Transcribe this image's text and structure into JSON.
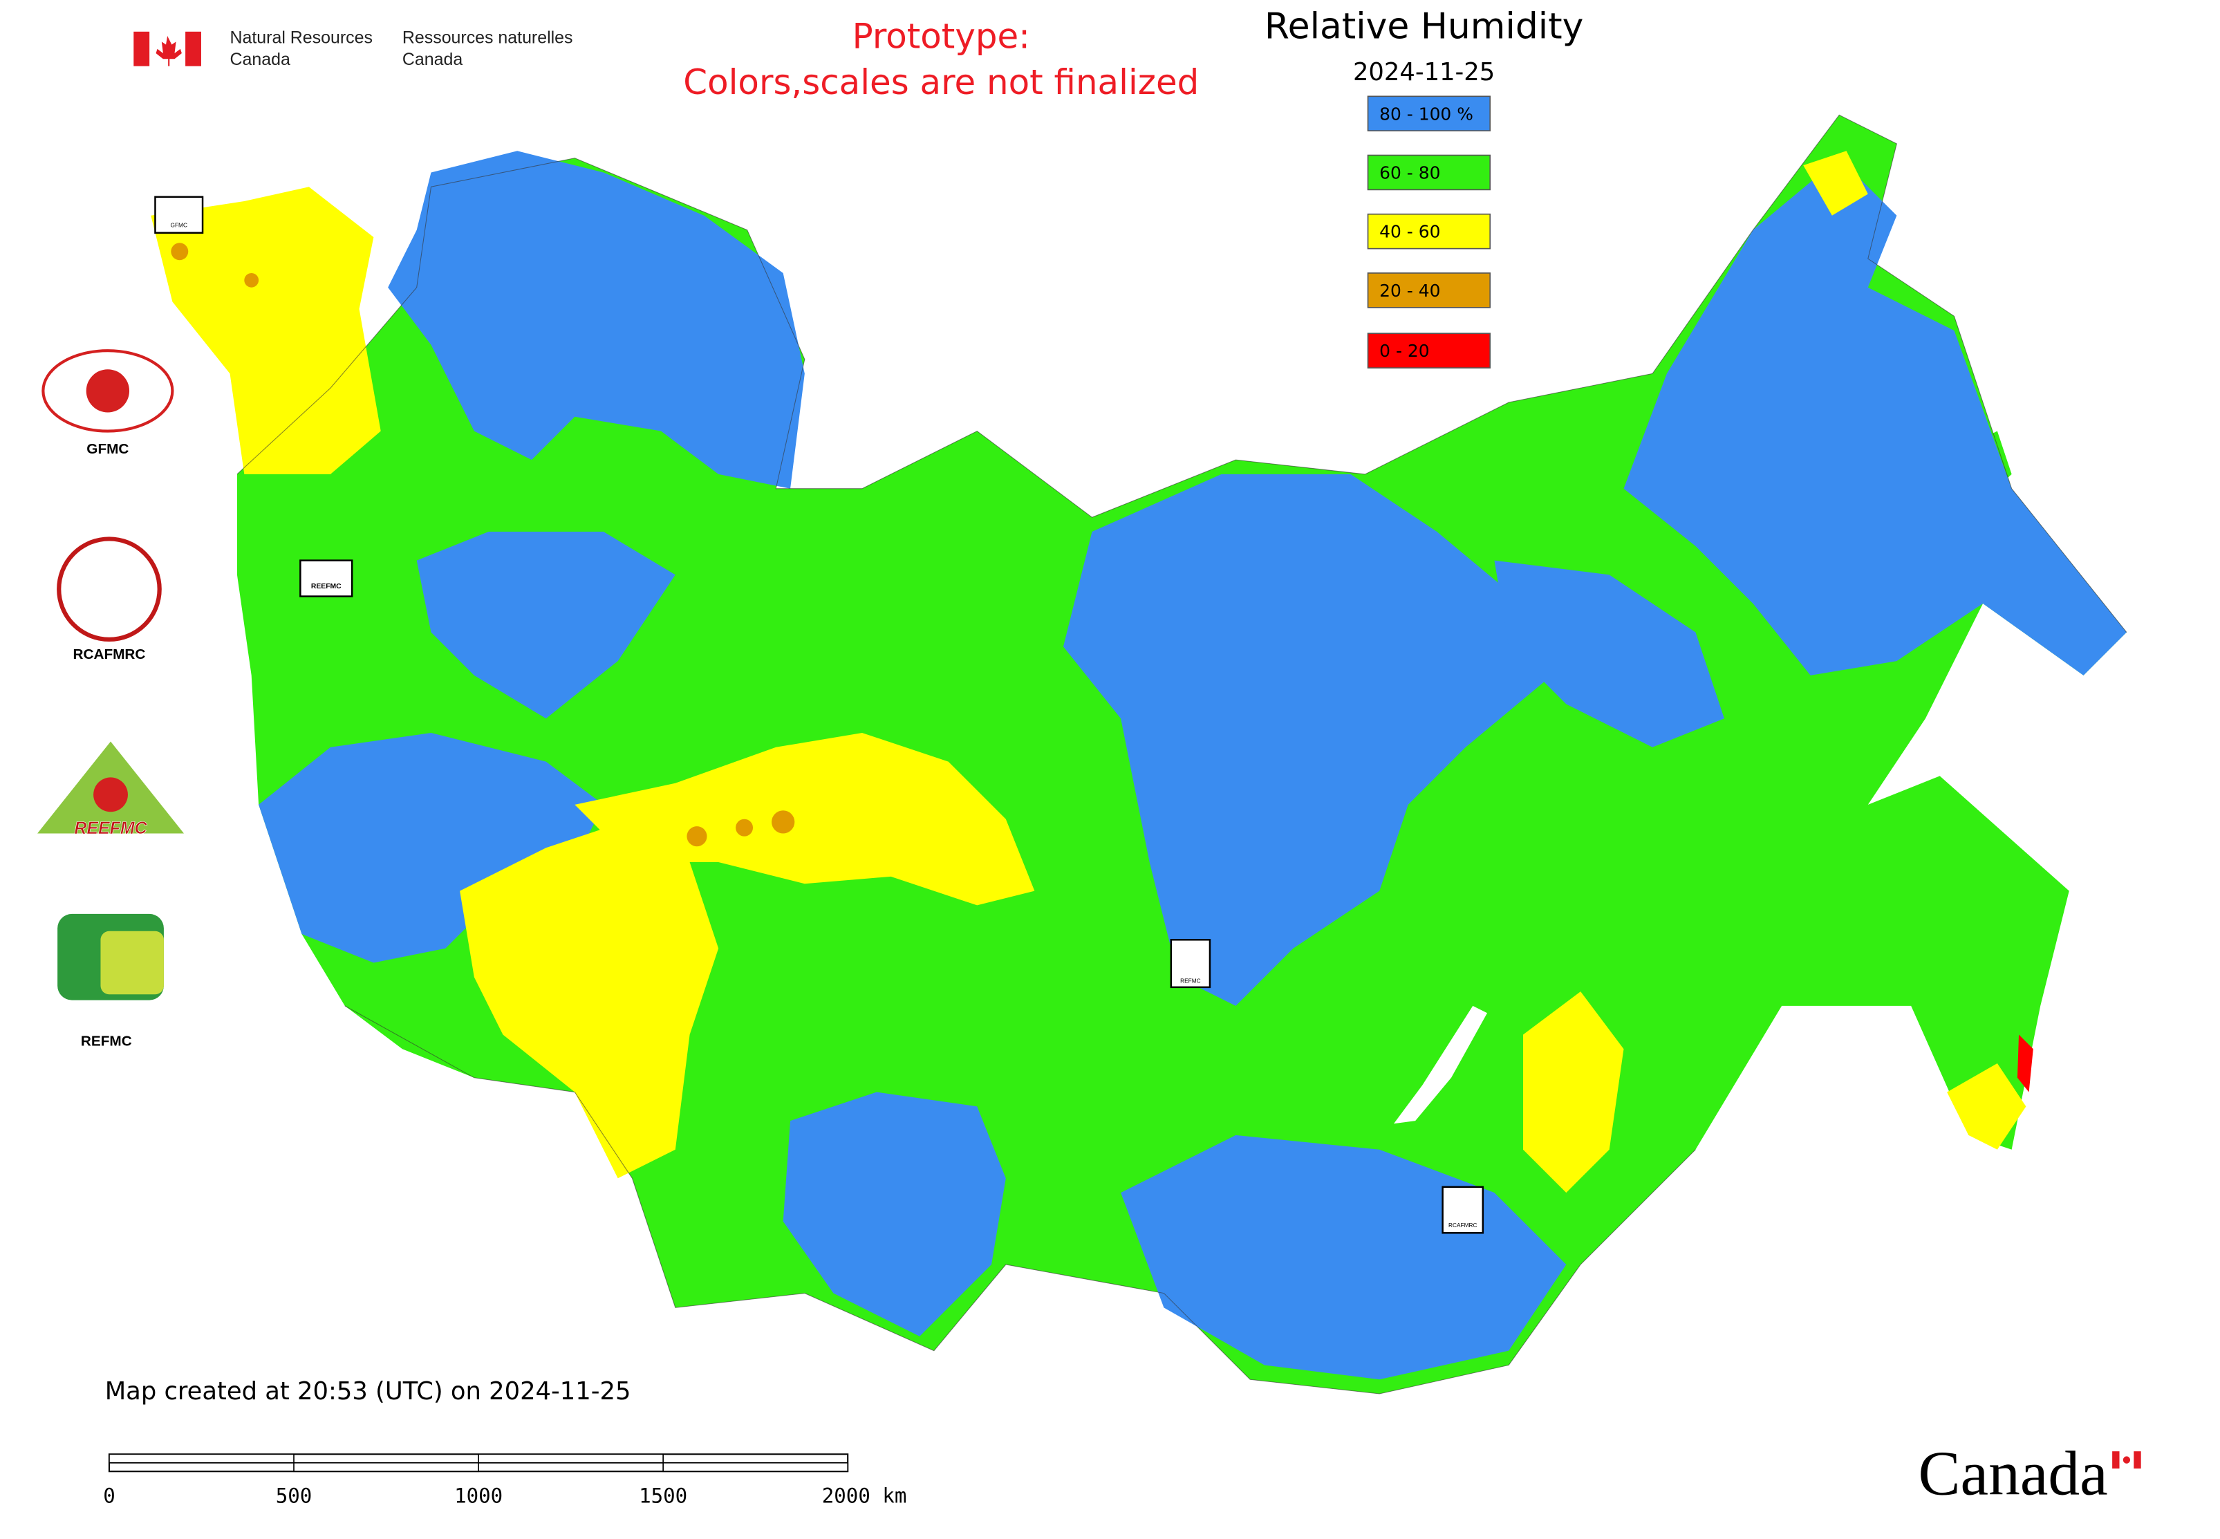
{
  "header": {
    "department_en": [
      "Natural Resources",
      "Canada"
    ],
    "department_fr": [
      "Ressources naturelles",
      "Canada"
    ]
  },
  "notice": [
    "Prototype:",
    "Colors,scales are not finalized"
  ],
  "title": "Relative Humidity",
  "date": "2024-11-25",
  "legend": [
    {
      "label": "80 - 100 %",
      "color": "#3a8cf0"
    },
    {
      "label": "60 - 80",
      "color": "#33ee11"
    },
    {
      "label": "40 - 60",
      "color": "#ffff00"
    },
    {
      "label": "20 - 40",
      "color": "#e09a00"
    },
    {
      "label": "0 - 20",
      "color": "#ff0000"
    }
  ],
  "logos": [
    "GFMC",
    "RCAFMRC",
    "REEFMC",
    "REFMC"
  ],
  "map_markers": [
    "GFMC",
    "REEFMC",
    "REFMC",
    "RCAFMRC"
  ],
  "footer": "Map created at 20:53 (UTC) on 2024-11-25",
  "scale_bar": [
    "0",
    "500",
    "1000",
    "1500",
    "2000 km"
  ],
  "wordmark": "Canada"
}
